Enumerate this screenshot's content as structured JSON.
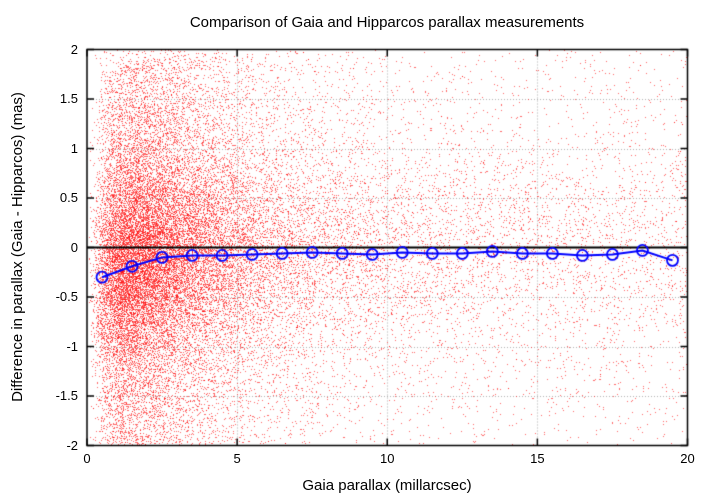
{
  "chart_data": {
    "type": "scatter",
    "title": "Comparison of Gaia and Hipparcos parallax measurements",
    "xlabel": "Gaia parallax (millarcsec)",
    "ylabel": "Difference in parallax (Gaia - Hipparcos) (mas)",
    "xlim": [
      0,
      20
    ],
    "ylim": [
      -2,
      2
    ],
    "xticks": {
      "values": [
        0,
        5,
        10,
        15,
        20
      ],
      "labels": [
        "0",
        "5",
        "10",
        "15",
        "20"
      ]
    },
    "yticks": {
      "values": [
        2,
        1.5,
        1,
        0.5,
        0,
        -0.5,
        -1,
        -1.5,
        -2
      ],
      "labels": [
        "2",
        "1.5",
        "1",
        "0.5",
        "0",
        "-0.5",
        "-1",
        "-1.5",
        "-2"
      ]
    },
    "grid": {
      "enabled": true,
      "style": "dotted",
      "at": "major-ticks"
    },
    "zero_line": {
      "y": 0,
      "color": "#000000"
    },
    "legend": "none",
    "series": [
      {
        "name": "parallax-difference-scatter",
        "type": "scatter",
        "color": "#ff0000",
        "marker": "1px-dot",
        "approx_point_count": 30000,
        "distribution_note": "dense cloud peaked near x=2.5 mas spanning full y range -2..2, thinning toward x=20, slight negative bias at low parallax",
        "generator": {
          "seed": 42,
          "n": 30000,
          "uniform_x_frac": 0.2,
          "log_mu": 0.956,
          "log_sigma": 0.78,
          "x_min": 0.08,
          "y_mix": [
            0.42,
            0.33,
            0.25
          ],
          "y_sigma1": 0.5,
          "y_sigma2": 1.2,
          "bias_amp": -0.35,
          "bias_scale": 1.6
        }
      },
      {
        "name": "binned-mean-difference",
        "type": "line-with-open-circle-markers",
        "color": "#0000ff",
        "x": [
          0.5,
          1.5,
          2.5,
          3.5,
          4.5,
          5.5,
          6.5,
          7.5,
          8.5,
          9.5,
          10.5,
          11.5,
          12.5,
          13.5,
          14.5,
          15.5,
          16.5,
          17.5,
          18.5,
          19.5
        ],
        "y": [
          -0.3,
          -0.19,
          -0.1,
          -0.08,
          -0.08,
          -0.07,
          -0.06,
          -0.05,
          -0.06,
          -0.07,
          -0.05,
          -0.06,
          -0.06,
          -0.04,
          -0.06,
          -0.06,
          -0.08,
          -0.07,
          -0.03,
          -0.13
        ]
      }
    ],
    "colors": {
      "background": "#ffffff",
      "border": "#000000",
      "grid": "#b0b0b0",
      "text": "#000000",
      "scatter": "#ff0000",
      "line": "#0000ff"
    }
  }
}
